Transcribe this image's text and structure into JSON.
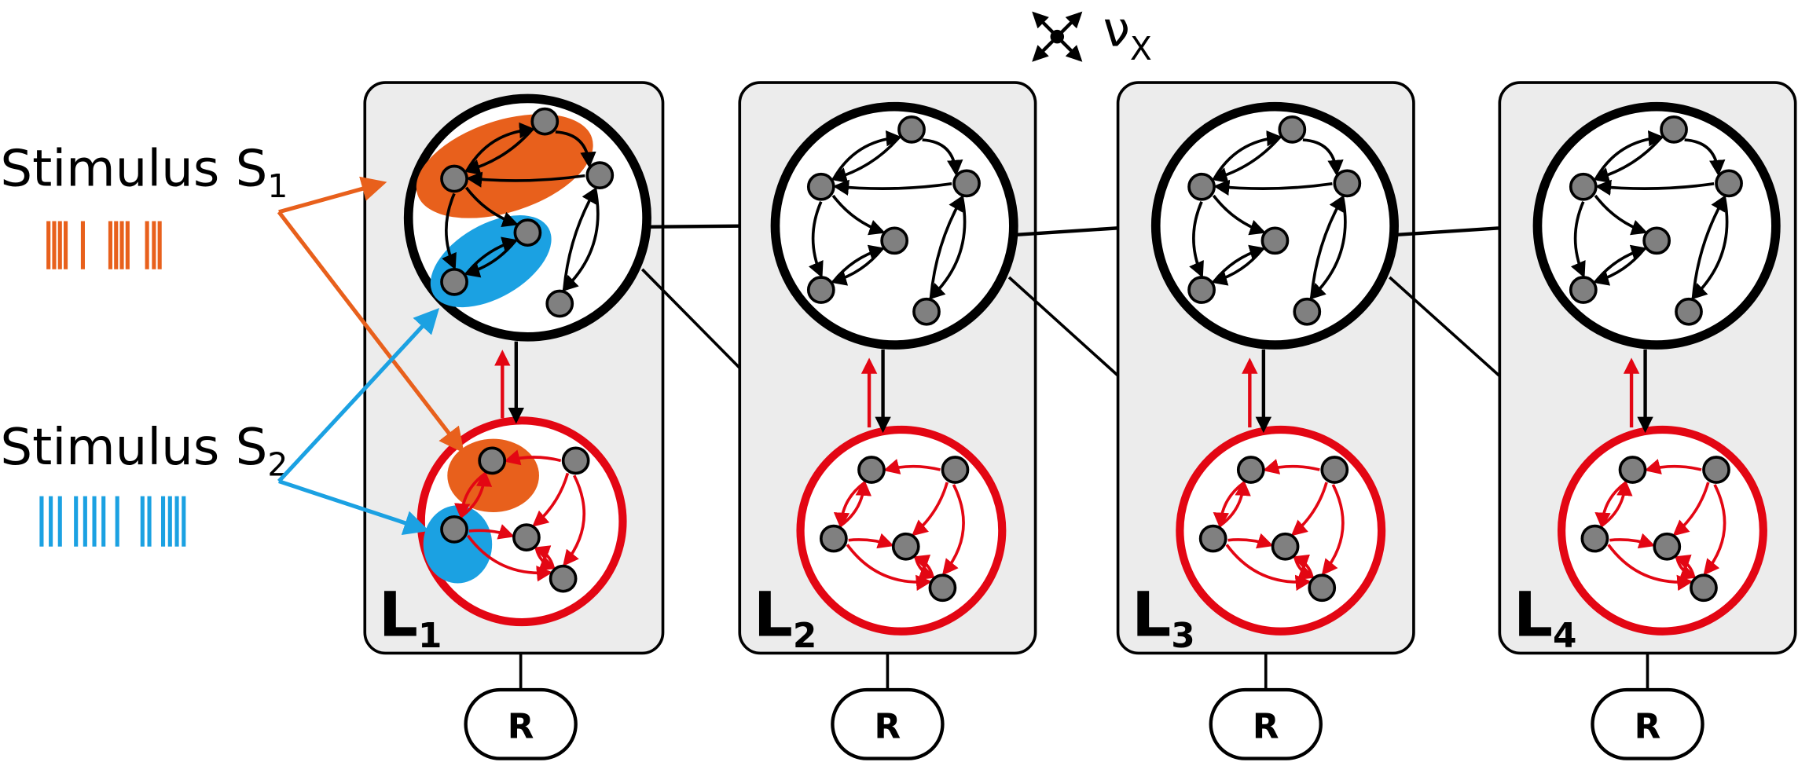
{
  "stimuli": [
    {
      "label": "Stimulus S",
      "subscript": "1"
    },
    {
      "label": "Stimulus S",
      "subscript": "2"
    }
  ],
  "noise": {
    "symbol": "ν",
    "subscript": "X"
  },
  "layers": [
    {
      "label": "L",
      "subscript": "1",
      "readout": "R"
    },
    {
      "label": "L",
      "subscript": "2",
      "readout": "R"
    },
    {
      "label": "L",
      "subscript": "3",
      "readout": "R"
    },
    {
      "label": "L",
      "subscript": "4",
      "readout": "R"
    }
  ]
}
